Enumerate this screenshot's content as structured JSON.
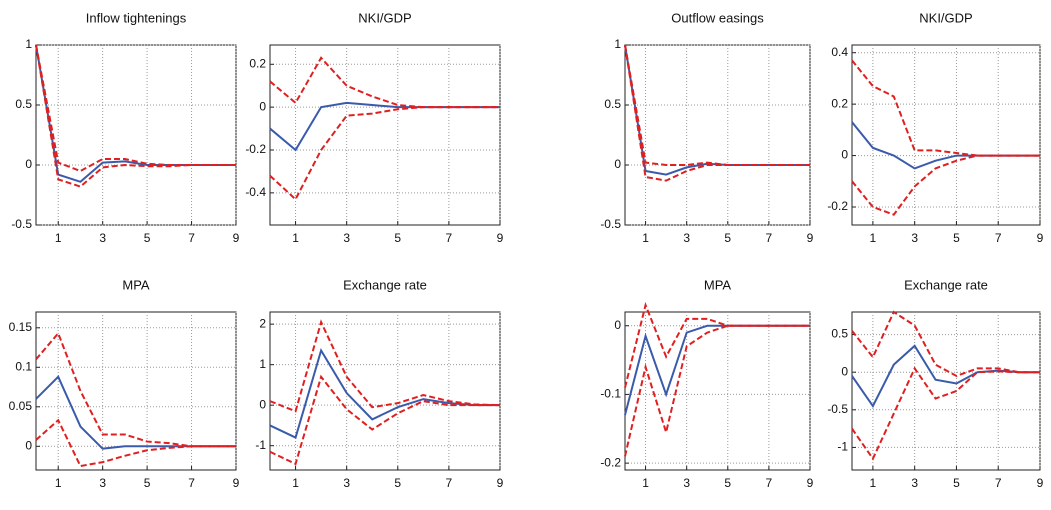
{
  "chart_data": [
    {
      "type": "line",
      "title": "Inflow tightenings",
      "x": [
        0,
        1,
        2,
        3,
        4,
        5,
        6,
        7,
        8,
        9
      ],
      "xlim": [
        0,
        9
      ],
      "xticks": [
        1,
        3,
        5,
        7,
        9
      ],
      "ylim": [
        -0.5,
        1
      ],
      "yticks": [
        -0.5,
        0,
        0.5,
        1
      ],
      "grid": true,
      "series": [
        {
          "color": "#3a5bab",
          "style": "solid",
          "values": [
            1,
            -0.08,
            -0.14,
            0.02,
            0.03,
            0,
            0,
            0,
            0,
            0
          ]
        },
        {
          "color": "#e02020",
          "style": "dashed",
          "values": [
            1,
            0.02,
            -0.05,
            0.05,
            0.05,
            0.01,
            0,
            0,
            0,
            0
          ]
        },
        {
          "color": "#e02020",
          "style": "dashed",
          "values": [
            1,
            -0.12,
            -0.18,
            -0.02,
            0,
            -0.01,
            -0.01,
            0,
            0,
            0
          ]
        }
      ]
    },
    {
      "type": "line",
      "title": "NKI/GDP",
      "x": [
        0,
        1,
        2,
        3,
        4,
        5,
        6,
        7,
        8,
        9
      ],
      "xlim": [
        0,
        9
      ],
      "xticks": [
        1,
        3,
        5,
        7,
        9
      ],
      "ylim": [
        -0.55,
        0.29
      ],
      "yticks": [
        -0.4,
        -0.2,
        0,
        0.2
      ],
      "grid": true,
      "series": [
        {
          "color": "#3a5bab",
          "style": "solid",
          "values": [
            -0.1,
            -0.2,
            0,
            0.02,
            0.01,
            0,
            0,
            0,
            0,
            0
          ]
        },
        {
          "color": "#e02020",
          "style": "dashed",
          "values": [
            0.12,
            0.02,
            0.23,
            0.1,
            0.05,
            0.01,
            0,
            0,
            0,
            0
          ]
        },
        {
          "color": "#e02020",
          "style": "dashed",
          "values": [
            -0.32,
            -0.43,
            -0.2,
            -0.04,
            -0.03,
            -0.01,
            0,
            0,
            0,
            0
          ]
        }
      ]
    },
    {
      "type": "line",
      "title": "Outflow easings",
      "x": [
        0,
        1,
        2,
        3,
        4,
        5,
        6,
        7,
        8,
        9
      ],
      "xlim": [
        0,
        9
      ],
      "xticks": [
        1,
        3,
        5,
        7,
        9
      ],
      "ylim": [
        -0.5,
        1
      ],
      "yticks": [
        -0.5,
        0,
        0.5,
        1
      ],
      "grid": true,
      "series": [
        {
          "color": "#3a5bab",
          "style": "solid",
          "values": [
            1,
            -0.05,
            -0.08,
            -0.02,
            0.01,
            0,
            0,
            0,
            0,
            0
          ]
        },
        {
          "color": "#e02020",
          "style": "dashed",
          "values": [
            1,
            0.02,
            0,
            0,
            0.02,
            0,
            0,
            0,
            0,
            0
          ]
        },
        {
          "color": "#e02020",
          "style": "dashed",
          "values": [
            1,
            -0.1,
            -0.13,
            -0.05,
            0,
            0,
            0,
            0,
            0,
            0
          ]
        }
      ]
    },
    {
      "type": "line",
      "title": "NKI/GDP",
      "x": [
        0,
        1,
        2,
        3,
        4,
        5,
        6,
        7,
        8,
        9
      ],
      "xlim": [
        0,
        9
      ],
      "xticks": [
        1,
        3,
        5,
        7,
        9
      ],
      "ylim": [
        -0.27,
        0.43
      ],
      "yticks": [
        -0.2,
        0,
        0.2,
        0.4
      ],
      "grid": true,
      "series": [
        {
          "color": "#3a5bab",
          "style": "solid",
          "values": [
            0.13,
            0.03,
            0,
            -0.05,
            -0.02,
            0,
            0,
            0,
            0,
            0
          ]
        },
        {
          "color": "#e02020",
          "style": "dashed",
          "values": [
            0.37,
            0.27,
            0.23,
            0.02,
            0.02,
            0.01,
            0,
            0,
            0,
            0
          ]
        },
        {
          "color": "#e02020",
          "style": "dashed",
          "values": [
            -0.1,
            -0.2,
            -0.23,
            -0.12,
            -0.05,
            -0.02,
            0,
            0,
            0,
            0
          ]
        }
      ]
    },
    {
      "type": "line",
      "title": "MPA",
      "x": [
        0,
        1,
        2,
        3,
        4,
        5,
        6,
        7,
        8,
        9
      ],
      "xlim": [
        0,
        9
      ],
      "xticks": [
        1,
        3,
        5,
        7,
        9
      ],
      "ylim": [
        -0.03,
        0.17
      ],
      "yticks": [
        0,
        0.05,
        0.1,
        0.15
      ],
      "grid": true,
      "series": [
        {
          "color": "#3a5bab",
          "style": "solid",
          "values": [
            0.06,
            0.088,
            0.025,
            -0.003,
            0,
            0,
            0,
            0,
            0,
            0
          ]
        },
        {
          "color": "#e02020",
          "style": "dashed",
          "values": [
            0.11,
            0.143,
            0.07,
            0.015,
            0.015,
            0.006,
            0.004,
            0,
            0,
            0
          ]
        },
        {
          "color": "#e02020",
          "style": "dashed",
          "values": [
            0.008,
            0.033,
            -0.025,
            -0.02,
            -0.012,
            -0.005,
            -0.002,
            0,
            0,
            0
          ]
        }
      ]
    },
    {
      "type": "line",
      "title": "Exchange rate",
      "x": [
        0,
        1,
        2,
        3,
        4,
        5,
        6,
        7,
        8,
        9
      ],
      "xlim": [
        0,
        9
      ],
      "xticks": [
        1,
        3,
        5,
        7,
        9
      ],
      "ylim": [
        -1.6,
        2.3
      ],
      "yticks": [
        -1,
        0,
        1,
        2
      ],
      "grid": true,
      "series": [
        {
          "color": "#3a5bab",
          "style": "solid",
          "values": [
            -0.5,
            -0.8,
            1.35,
            0.3,
            -0.35,
            -0.05,
            0.15,
            0.05,
            0,
            0
          ]
        },
        {
          "color": "#e02020",
          "style": "dashed",
          "values": [
            0.1,
            -0.15,
            2.05,
            0.7,
            -0.05,
            0.05,
            0.25,
            0.1,
            0.02,
            0
          ]
        },
        {
          "color": "#e02020",
          "style": "dashed",
          "values": [
            -1.15,
            -1.45,
            0.7,
            -0.1,
            -0.6,
            -0.2,
            0.1,
            0,
            0,
            0
          ]
        }
      ]
    },
    {
      "type": "line",
      "title": "MPA",
      "x": [
        0,
        1,
        2,
        3,
        4,
        5,
        6,
        7,
        8,
        9
      ],
      "xlim": [
        0,
        9
      ],
      "xticks": [
        1,
        3,
        5,
        7,
        9
      ],
      "ylim": [
        -0.21,
        0.02
      ],
      "yticks": [
        -0.2,
        -0.1,
        0
      ],
      "grid": true,
      "series": [
        {
          "color": "#3a5bab",
          "style": "solid",
          "values": [
            -0.13,
            -0.015,
            -0.1,
            -0.01,
            0,
            0,
            0,
            0,
            0,
            0
          ]
        },
        {
          "color": "#e02020",
          "style": "dashed",
          "values": [
            -0.09,
            0.03,
            -0.045,
            0.01,
            0.01,
            0,
            0,
            0,
            0,
            0
          ]
        },
        {
          "color": "#e02020",
          "style": "dashed",
          "values": [
            -0.19,
            -0.06,
            -0.155,
            -0.03,
            -0.01,
            0,
            0,
            0,
            0,
            0
          ]
        }
      ]
    },
    {
      "type": "line",
      "title": "Exchange rate",
      "x": [
        0,
        1,
        2,
        3,
        4,
        5,
        6,
        7,
        8,
        9
      ],
      "xlim": [
        0,
        9
      ],
      "xticks": [
        1,
        3,
        5,
        7,
        9
      ],
      "ylim": [
        -1.3,
        0.8
      ],
      "yticks": [
        -1,
        -0.5,
        0,
        0.5
      ],
      "grid": true,
      "series": [
        {
          "color": "#3a5bab",
          "style": "solid",
          "values": [
            -0.05,
            -0.45,
            0.1,
            0.35,
            -0.1,
            -0.15,
            0,
            0.02,
            0,
            0
          ]
        },
        {
          "color": "#e02020",
          "style": "dashed",
          "values": [
            0.55,
            0.2,
            0.8,
            0.62,
            0.1,
            -0.05,
            0.05,
            0.05,
            0,
            0
          ]
        },
        {
          "color": "#e02020",
          "style": "dashed",
          "values": [
            -0.75,
            -1.15,
            -0.55,
            0.05,
            -0.35,
            -0.25,
            0,
            0.01,
            0,
            0
          ]
        }
      ]
    }
  ]
}
